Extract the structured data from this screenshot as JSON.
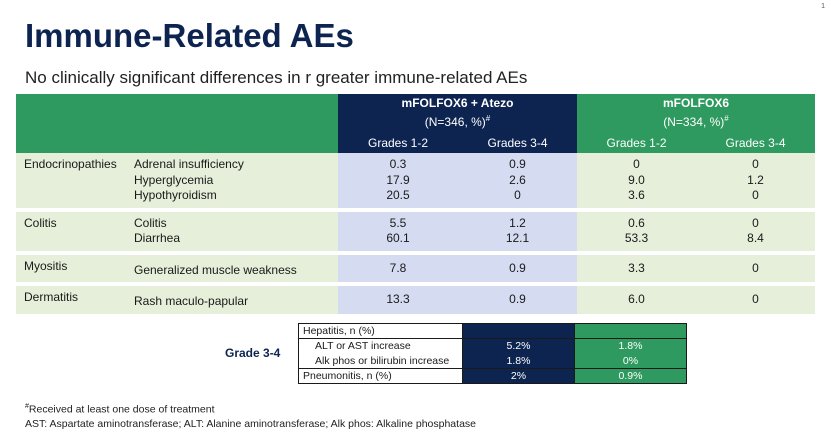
{
  "page_number": "1",
  "title": "Immune-Related AEs",
  "subtitle": "No clinically significant differences in r greater immune-related AEs",
  "table": {
    "arm_atezo": {
      "name": "mFOLFOX6 + Atezo",
      "n": "(N=346, %)#"
    },
    "arm_fox": {
      "name": "mFOLFOX6",
      "n": "(N=334, %)#"
    },
    "grade_headers": [
      "Grades 1-2",
      "Grades 3-4",
      "Grades 1-2",
      "Grades 3-4"
    ],
    "groups": [
      {
        "category": "Endocrinopathies",
        "events": [
          {
            "name": "Adrenal insufficiency",
            "values": [
              "0.3",
              "0.9",
              "0",
              "0"
            ]
          },
          {
            "name": "Hyperglycemia",
            "values": [
              "17.9",
              "2.6",
              "9.0",
              "1.2"
            ]
          },
          {
            "name": "Hypothyroidism",
            "values": [
              "20.5",
              "0",
              "3.6",
              "0"
            ]
          }
        ]
      },
      {
        "category": "Colitis",
        "events": [
          {
            "name": "Colitis",
            "values": [
              "5.5",
              "1.2",
              "0.6",
              "0"
            ]
          },
          {
            "name": "Diarrhea",
            "values": [
              "60.1",
              "12.1",
              "53.3",
              "8.4"
            ]
          }
        ]
      },
      {
        "category": "Myositis",
        "events": [
          {
            "name": "Generalized muscle weakness",
            "values": [
              "7.8",
              "0.9",
              "3.3",
              "0"
            ]
          }
        ]
      },
      {
        "category": "Dermatitis",
        "events": [
          {
            "name": "Rash maculo-papular",
            "values": [
              "13.3",
              "0.9",
              "6.0",
              "0"
            ]
          }
        ]
      }
    ]
  },
  "grade34": {
    "label": "Grade 3-4",
    "rows": [
      {
        "label": "Hepatitis, n (%)",
        "atezo": "",
        "fox": ""
      },
      {
        "label": "ALT or AST increase",
        "atezo": "5.2%",
        "fox": "1.8%"
      },
      {
        "label": "Alk phos or bilirubin increase",
        "atezo": "1.8%",
        "fox": "0%"
      },
      {
        "label": "Pneumonitis, n (%)",
        "atezo": "2%",
        "fox": "0.9%"
      }
    ]
  },
  "footnotes": {
    "line1_mark": "#",
    "line1": "Received at least one dose of treatment",
    "line2": "AST: Aspartate aminotransferase; ALT: Alanine aminotransferase; Alk phos: Alkaline phosphatase"
  },
  "colors": {
    "navy": "#0d2451",
    "green": "#2e9a5f",
    "light_green": "#e5efd9",
    "light_blue": "#d5dcf1"
  }
}
